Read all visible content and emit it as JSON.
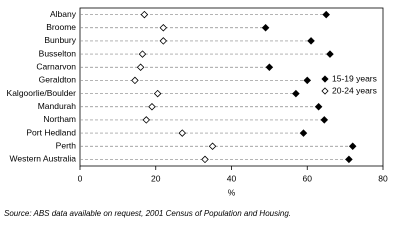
{
  "chart_data": {
    "type": "dot",
    "categories": [
      "Albany",
      "Broome",
      "Bunbury",
      "Busselton",
      "Carnarvon",
      "Geraldton",
      "Kalgoorlie/Boulder",
      "Mandurah",
      "Northam",
      "Port Hedland",
      "Perth",
      "Western Australia"
    ],
    "series": [
      {
        "name": "15-19 years",
        "color": "#000000",
        "fill": "filled",
        "values": [
          65,
          49,
          61,
          66,
          50,
          60,
          57,
          63,
          64.5,
          59,
          72,
          71
        ]
      },
      {
        "name": "20-24 years",
        "color": "#000000",
        "fill": "hollow",
        "values": [
          17,
          22,
          22,
          16.5,
          16,
          14.5,
          20.5,
          19,
          17.5,
          27,
          35,
          33
        ]
      }
    ],
    "xlim": [
      0,
      80
    ],
    "xticks": [
      0,
      20,
      40,
      60,
      80
    ],
    "xlabel": "%",
    "legend": "right",
    "source": "Source: ABS data available on request, 2001 Census of Population and Housing."
  }
}
